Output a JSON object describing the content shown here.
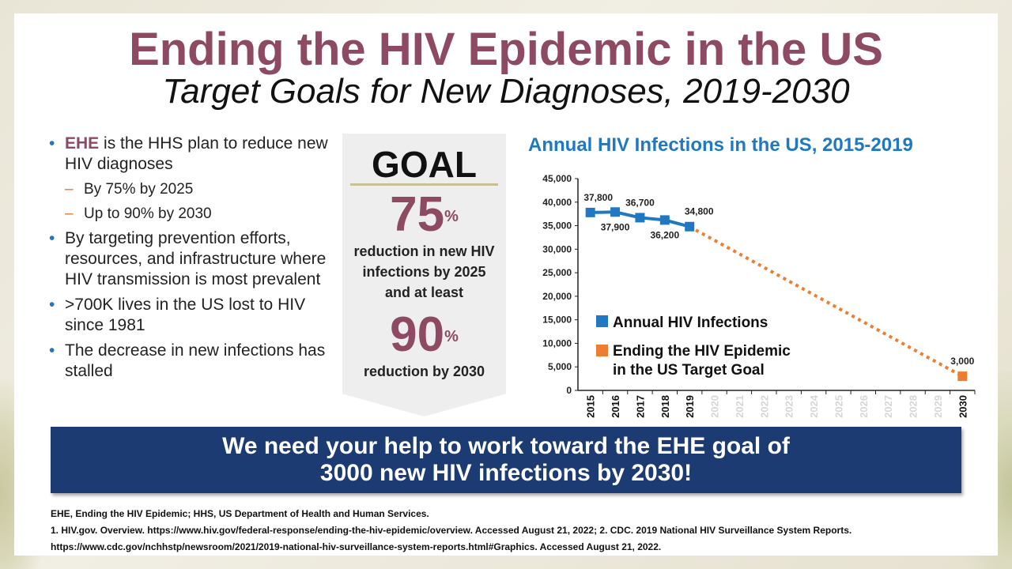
{
  "title": "Ending the HIV Epidemic in the US",
  "subtitle": "Target Goals for New Diagnoses, 2019-2030",
  "bullets": {
    "b1_ehe": "EHE",
    "b1_text": " is the HHS plan to reduce new HIV diagnoses",
    "b1_sub1": "By 75% by 2025",
    "b1_sub2": "Up to 90% by 2030",
    "b2": "By targeting prevention efforts, resources, and infrastructure where HIV transmission is most prevalent",
    "b3": ">700K lives in the US lost to HIV since 1981",
    "b4": "The decrease in new infections has stalled"
  },
  "goal": {
    "heading": "GOAL",
    "pct1": "75",
    "pct_sign": "%",
    "text1": "reduction in new HIV infections by 2025 and at least",
    "pct2": "90",
    "text2": "reduction by 2030"
  },
  "chart_data": {
    "type": "line",
    "title": "Annual HIV Infections in the US, 2015-2019",
    "categories": [
      "2015",
      "2016",
      "2017",
      "2018",
      "2019",
      "2020",
      "2021",
      "2022",
      "2023",
      "2024",
      "2025",
      "2026",
      "2027",
      "2028",
      "2029",
      "2030"
    ],
    "ylim": [
      0,
      45000
    ],
    "yticks": [
      0,
      5000,
      10000,
      15000,
      20000,
      25000,
      30000,
      35000,
      40000,
      45000
    ],
    "ytick_labels": [
      "0",
      "5,000",
      "10,000",
      "15,000",
      "20,000",
      "25,000",
      "30,000",
      "35,000",
      "40,000",
      "45,000"
    ],
    "active_year_labels": [
      "2015",
      "2016",
      "2017",
      "2018",
      "2019",
      "2030"
    ],
    "series": [
      {
        "name": "Annual HIV Infections",
        "color": "#1f78c1",
        "x": [
          "2015",
          "2016",
          "2017",
          "2018",
          "2019"
        ],
        "values": [
          37800,
          37900,
          36700,
          36200,
          34800
        ],
        "labels": [
          "37,800",
          "37,900",
          "36,700",
          "36,200",
          "34,800"
        ]
      },
      {
        "name": "Ending the HIV Epidemic in the US Target Goal",
        "name_lines": [
          "Ending the HIV Epidemic",
          "in the US Target Goal"
        ],
        "color": "#ed7d31",
        "style": "dotted",
        "x": [
          "2019",
          "2030"
        ],
        "values": [
          34800,
          3000
        ],
        "labels": [
          "",
          "3,000"
        ]
      }
    ],
    "legend_position": "lower-left",
    "grid": false
  },
  "banner": {
    "line1": "We need your help to work toward the EHE goal of",
    "line2": "3000 new HIV infections by 2030!"
  },
  "footnotes": {
    "line1": "EHE, Ending the HIV Epidemic; HHS, US Department of Health and Human Services.",
    "line2": "1. HIV.gov. Overview. https://www.hiv.gov/federal-response/ending-the-hiv-epidemic/overview.  Accessed August 21, 2022; 2. CDC. 2019 National HIV Surveillance System Reports.",
    "line3": "https://www.cdc.gov/nchhstp/newsroom/2021/2019-national-hiv-surveillance-system-reports.html#Graphics.  Accessed August 21, 2022."
  }
}
